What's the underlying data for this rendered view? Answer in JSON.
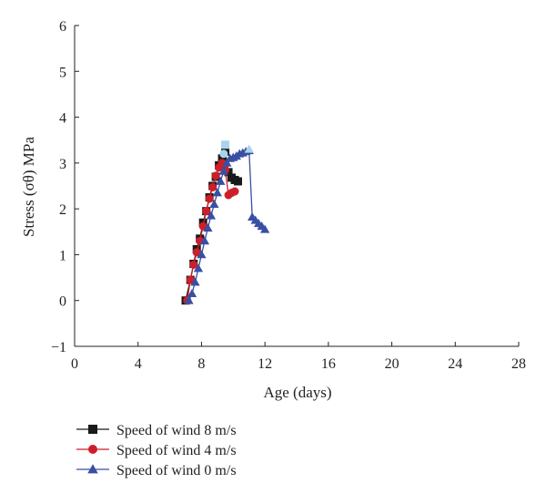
{
  "chart_data": {
    "type": "line",
    "title": "",
    "xlabel": "Age (days)",
    "ylabel": "Stress (σθ) MPa",
    "xlim": [
      0,
      28
    ],
    "ylim": [
      -1,
      6
    ],
    "xticks": [
      0,
      4,
      8,
      12,
      16,
      20,
      24,
      28
    ],
    "yticks": [
      -1,
      0,
      1,
      2,
      3,
      4,
      5,
      6
    ],
    "grid": false,
    "legend_position": "bottom-left",
    "series": [
      {
        "name": "Speed of wind 8 m/s",
        "marker": "square",
        "color": "#1a1a1a",
        "points": [
          [
            7.0,
            0.0
          ],
          [
            7.3,
            0.45
          ],
          [
            7.5,
            0.8
          ],
          [
            7.7,
            1.12
          ],
          [
            7.9,
            1.35
          ],
          [
            8.1,
            1.7
          ],
          [
            8.3,
            1.95
          ],
          [
            8.5,
            2.25
          ],
          [
            8.7,
            2.5
          ],
          [
            8.9,
            2.7
          ],
          [
            9.1,
            2.95
          ],
          [
            9.3,
            3.1
          ],
          [
            9.5,
            3.25
          ],
          [
            9.7,
            2.8
          ],
          [
            9.9,
            2.68
          ],
          [
            10.1,
            2.63
          ],
          [
            10.3,
            2.6
          ]
        ]
      },
      {
        "name": "Speed of wind 4 m/s",
        "marker": "circle",
        "color": "#cc1f2a",
        "points": [
          [
            7.1,
            0.0
          ],
          [
            7.3,
            0.45
          ],
          [
            7.5,
            0.78
          ],
          [
            7.7,
            1.05
          ],
          [
            7.9,
            1.3
          ],
          [
            8.1,
            1.62
          ],
          [
            8.3,
            1.95
          ],
          [
            8.5,
            2.22
          ],
          [
            8.7,
            2.47
          ],
          [
            8.9,
            2.72
          ],
          [
            9.1,
            2.9
          ],
          [
            9.3,
            3.0
          ],
          [
            9.5,
            2.85
          ],
          [
            9.7,
            2.3
          ],
          [
            9.9,
            2.35
          ],
          [
            10.1,
            2.38
          ]
        ]
      },
      {
        "name": "Speed of wind 0 m/s",
        "marker": "triangle",
        "color": "#3a4fa3",
        "points": [
          [
            7.2,
            0.0
          ],
          [
            7.4,
            0.15
          ],
          [
            7.6,
            0.4
          ],
          [
            7.8,
            0.7
          ],
          [
            8.0,
            1.0
          ],
          [
            8.2,
            1.3
          ],
          [
            8.4,
            1.58
          ],
          [
            8.6,
            1.85
          ],
          [
            8.8,
            2.1
          ],
          [
            9.0,
            2.35
          ],
          [
            9.2,
            2.6
          ],
          [
            9.4,
            2.82
          ],
          [
            9.6,
            3.0
          ],
          [
            9.8,
            3.1
          ],
          [
            10.0,
            3.12
          ],
          [
            10.2,
            3.15
          ],
          [
            10.4,
            3.2
          ],
          [
            10.6,
            3.22
          ],
          [
            10.8,
            3.25
          ],
          [
            11.0,
            3.27
          ],
          [
            11.2,
            1.82
          ],
          [
            11.4,
            1.75
          ],
          [
            11.6,
            1.68
          ],
          [
            11.8,
            1.62
          ],
          [
            12.0,
            1.55
          ]
        ]
      }
    ],
    "highlight_points": [
      {
        "marker": "square",
        "color": "#a9d3ea",
        "x": 9.5,
        "y": 3.4
      },
      {
        "marker": "triangle",
        "color": "#a9d3ea",
        "x": 11.0,
        "y": 3.3
      },
      {
        "marker": "circle",
        "color": "#a9d3ea",
        "x": 9.4,
        "y": 3.2
      }
    ]
  }
}
